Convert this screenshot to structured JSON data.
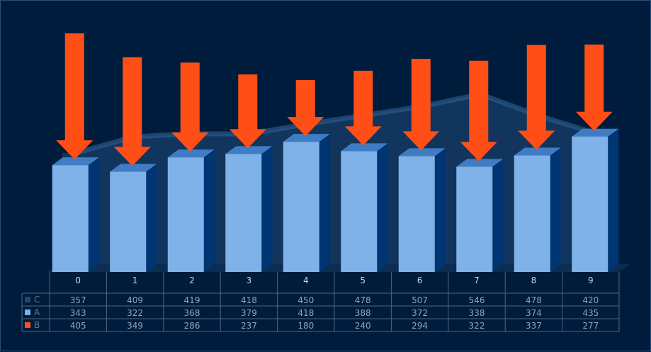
{
  "chart_data": {
    "type": "bar",
    "categories": [
      "0",
      "1",
      "2",
      "3",
      "4",
      "5",
      "6",
      "7",
      "8",
      "9"
    ],
    "series": [
      {
        "name": "C",
        "style": "area",
        "color": "#1f4a78",
        "values": [
          357,
          409,
          419,
          418,
          450,
          478,
          507,
          546,
          478,
          420
        ]
      },
      {
        "name": "A",
        "style": "3d-bar",
        "color": "#7fb2e8",
        "values": [
          343,
          322,
          368,
          379,
          418,
          388,
          372,
          338,
          374,
          435
        ]
      },
      {
        "name": "B",
        "style": "down-arrow",
        "color": "#ff4f17",
        "values": [
          405,
          349,
          286,
          237,
          180,
          240,
          294,
          322,
          337,
          277
        ]
      }
    ],
    "ylim": [
      0,
      780
    ],
    "grid": false,
    "legend": "data-table-bottom-left",
    "title": "",
    "xlabel": "",
    "ylabel": ""
  }
}
